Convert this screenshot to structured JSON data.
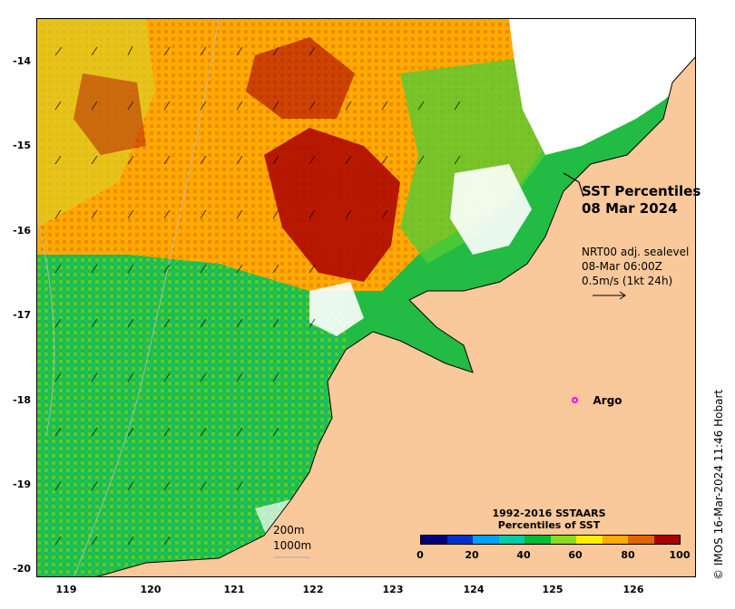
{
  "title": {
    "line1": "SST Percentiles",
    "line2": "08 Mar 2024"
  },
  "current_info": {
    "line1": "NRT00 adj. sealevel",
    "line2": "08-Mar 06:00Z",
    "line3": "0.5m/s (1kt 24h)"
  },
  "argo": {
    "label": "Argo",
    "lon": 125.25,
    "lat": -18.0,
    "color": "#ff00ff"
  },
  "lat_ticks": [
    "-14",
    "-15",
    "-16",
    "-17",
    "-18",
    "-19",
    "-20"
  ],
  "lon_ticks": [
    "119",
    "120",
    "121",
    "122",
    "123",
    "124",
    "125",
    "126"
  ],
  "extent": {
    "lon_min": 118.58,
    "lon_max": 126.75,
    "lat_min": -20.08,
    "lat_max": -13.5
  },
  "colorbar": {
    "title_line1": "1992-2016 SSTAARS",
    "title_line2": "Percentiles of SST",
    "ticks": [
      "0",
      "20",
      "40",
      "60",
      "80",
      "100"
    ],
    "colors": [
      "#00007f",
      "#0033cc",
      "#00a0ff",
      "#00ccaa",
      "#00bb33",
      "#88dd22",
      "#ffee00",
      "#ffaa00",
      "#dd6600",
      "#aa0000"
    ]
  },
  "scale": {
    "label_200": "200m",
    "label_1000": "1000m"
  },
  "land_color": "#f9c89b",
  "credit": "© IMOS 16-Mar-2024 11:46 Hobart"
}
